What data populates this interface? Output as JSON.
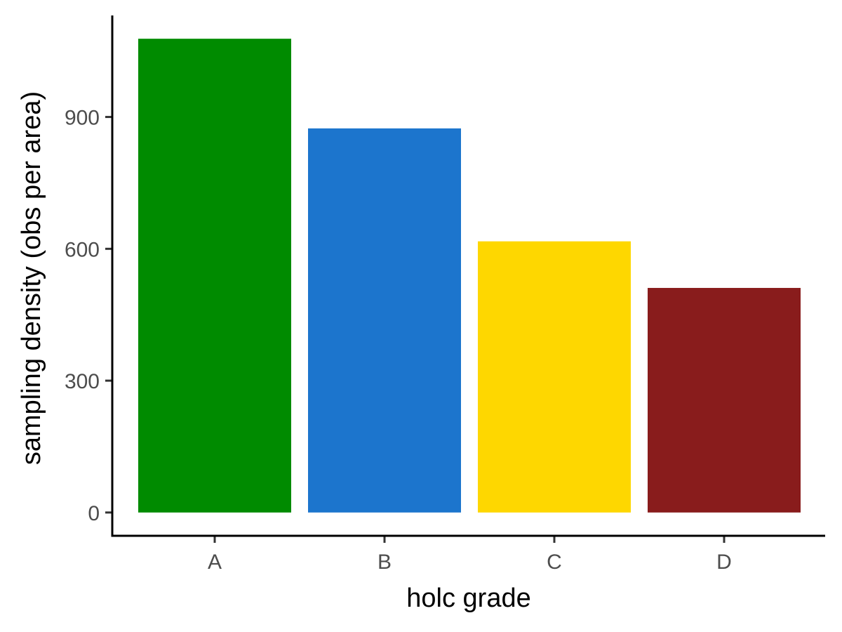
{
  "chart_data": {
    "type": "bar",
    "xlabel": "holc grade",
    "ylabel": "sampling density (obs per area)",
    "categories": [
      "A",
      "B",
      "C",
      "D"
    ],
    "values": [
      1078,
      874,
      617,
      511
    ],
    "colors": [
      "#008B00",
      "#1C75CD",
      "#FED700",
      "#891C1C"
    ],
    "ylim": [
      -53,
      1131
    ],
    "y_ticks": [
      0,
      300,
      600,
      900
    ],
    "y_tick_labels": [
      "0",
      "300",
      "600",
      "900"
    ],
    "grid": false,
    "legend": "none"
  }
}
